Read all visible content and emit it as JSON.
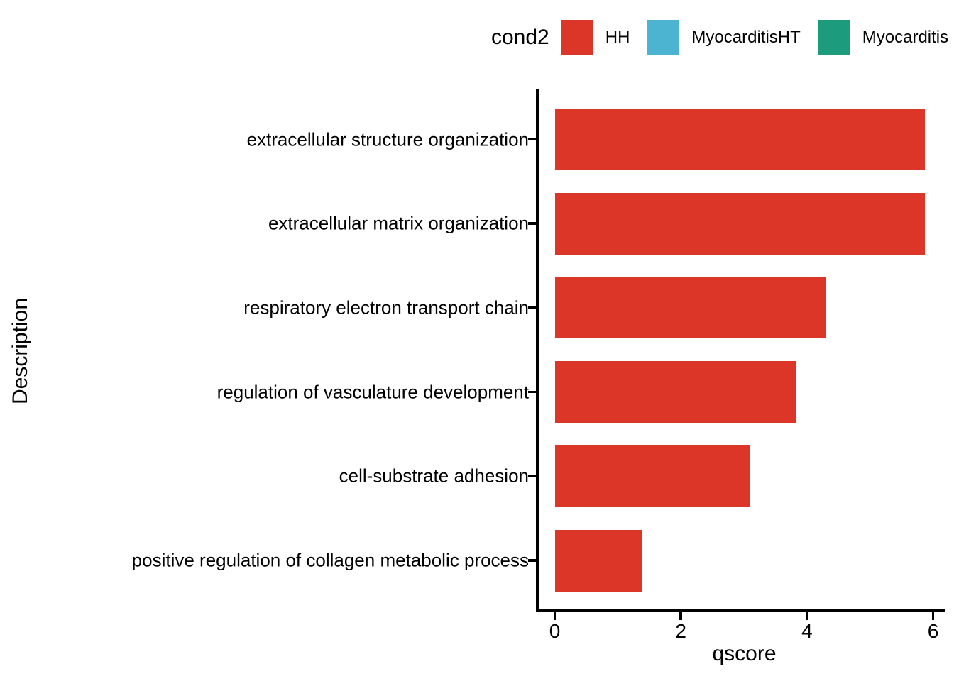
{
  "chart_data": {
    "type": "bar",
    "orientation": "horizontal",
    "xlabel": "qscore",
    "ylabel": "Description",
    "xlim": [
      0,
      6
    ],
    "x_ticks": [
      "0",
      "2",
      "4",
      "6"
    ],
    "x_tick_values": [
      0,
      2,
      4,
      6
    ],
    "categories": [
      "extracellular structure organization",
      "extracellular matrix organization",
      "respiratory electron transport chain",
      "regulation of vasculature development",
      "cell-substrate adhesion",
      "positive regulation of collagen metabolic process"
    ],
    "values": [
      5.87,
      5.87,
      4.31,
      3.82,
      3.1,
      1.39
    ],
    "series_name": "HH",
    "bar_color": "#DB3628",
    "grid": false,
    "background": "#FFFFFF",
    "legend": {
      "title": "cond2",
      "position": "top-right",
      "entries": [
        {
          "label": "HH",
          "color": "#DB3628"
        },
        {
          "label": "MyocarditisHT",
          "color": "#4CB3D0"
        },
        {
          "label": "Myocarditis",
          "color": "#1C9B7D"
        }
      ]
    }
  }
}
